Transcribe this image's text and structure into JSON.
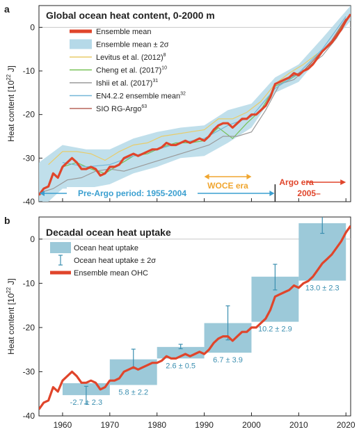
{
  "chart_data": [
    {
      "panel_label": "a",
      "type": "line",
      "title": "Global ocean heat content, 0-2000 m",
      "ylabel": "Heat content [10",
      "ylabel_exp": "22",
      "ylabel_unit": " J]",
      "xlim": [
        1955,
        2021
      ],
      "ylim": [
        -40,
        5
      ],
      "yticks": [
        -40,
        -30,
        -20,
        -10,
        0
      ],
      "grid": false,
      "legend_position": "top-left",
      "legend": [
        {
          "label": "Ensemble mean",
          "sup": ""
        },
        {
          "label": "Ensemble mean ± 2σ",
          "sup": ""
        },
        {
          "label": "Levitus et al. (2012)",
          "sup": "8"
        },
        {
          "label": "Cheng et al. (2017)",
          "sup": "10"
        },
        {
          "label": "Ishii et al. (2017)",
          "sup": "31"
        },
        {
          "label": "EN4.2.2 ensemble mean",
          "sup": "32"
        },
        {
          "label": "SIO RG-Argo",
          "sup": "63"
        }
      ],
      "series": [
        {
          "name": "Ensemble mean",
          "color": "#e0452b",
          "x": [
            1955,
            1956,
            1957,
            1958,
            1959,
            1960,
            1961,
            1962,
            1963,
            1964,
            1965,
            1966,
            1967,
            1968,
            1969,
            1970,
            1971,
            1972,
            1973,
            1974,
            1975,
            1976,
            1977,
            1978,
            1979,
            1980,
            1981,
            1982,
            1983,
            1984,
            1985,
            1986,
            1987,
            1988,
            1989,
            1990,
            1991,
            1992,
            1993,
            1994,
            1995,
            1996,
            1997,
            1998,
            1999,
            2000,
            2001,
            2002,
            2003,
            2004,
            2005,
            2006,
            2007,
            2008,
            2009,
            2010,
            2011,
            2012,
            2013,
            2014,
            2015,
            2016,
            2017,
            2018,
            2019,
            2020,
            2021
          ],
          "y": [
            -38.5,
            -37,
            -36.5,
            -33.5,
            -34.5,
            -32,
            -31,
            -30,
            -31,
            -32.5,
            -32.5,
            -32,
            -32.5,
            -34,
            -33.5,
            -32,
            -32,
            -31.5,
            -30,
            -29.5,
            -29,
            -29.5,
            -29,
            -28.5,
            -28,
            -28,
            -27.5,
            -26.5,
            -27,
            -27,
            -26.5,
            -26,
            -26.5,
            -26,
            -25.5,
            -26,
            -25,
            -23.5,
            -22.5,
            -22,
            -22,
            -23,
            -22,
            -21,
            -21,
            -20,
            -20,
            -19,
            -18,
            -16,
            -13,
            -12.5,
            -12,
            -11.5,
            -10.5,
            -11,
            -10,
            -9.5,
            -8.5,
            -7,
            -5.5,
            -4.5,
            -3.5,
            -2,
            -0.5,
            1.5,
            3
          ]
        },
        {
          "name": "Levitus et al. (2012)",
          "color": "#e8cc6a",
          "x": [
            1957,
            1960,
            1963,
            1966,
            1969,
            1972,
            1975,
            1978,
            1981,
            1984,
            1987,
            1990,
            1993,
            1996,
            1999,
            2002,
            2005,
            2008,
            2011,
            2014
          ],
          "y": [
            -31.5,
            -28.5,
            -28.5,
            -29,
            -30.5,
            -28.5,
            -27,
            -26.5,
            -25,
            -24.5,
            -24,
            -23.5,
            -21,
            -21,
            -19.5,
            -17,
            -13,
            -10.5,
            -8.5,
            -6
          ]
        },
        {
          "name": "Cheng et al. (2017)",
          "color": "#77c156",
          "x": [
            1960,
            1963,
            1966,
            1969,
            1972,
            1975,
            1978,
            1981,
            1984,
            1987,
            1990,
            1993,
            1996,
            1999,
            2002,
            2005,
            2008,
            2011,
            2014,
            2017,
            2020
          ],
          "y": [
            -32,
            -31,
            -32.5,
            -33.5,
            -31.5,
            -29.5,
            -29,
            -27.5,
            -26.5,
            -26.5,
            -26,
            -23,
            -25.5,
            -22,
            -19,
            -13.5,
            -12,
            -10,
            -6.5,
            -3.5,
            2
          ]
        },
        {
          "name": "Ishii et al. (2017)",
          "color": "#9a9a9a",
          "x": [
            1955,
            1958,
            1961,
            1964,
            1967,
            1970,
            1973,
            1976,
            1979,
            1982,
            1985,
            1988,
            1991,
            1994,
            1997,
            2000,
            2003,
            2006,
            2009,
            2012,
            2015,
            2018,
            2021
          ],
          "y": [
            -38,
            -37,
            -35,
            -34.5,
            -33,
            -32.5,
            -33,
            -32,
            -31,
            -30,
            -29,
            -28,
            -27,
            -25,
            -25,
            -24,
            -19,
            -13,
            -12,
            -9,
            -6.5,
            -2.5,
            3
          ]
        },
        {
          "name": "EN4.2.2 ensemble mean",
          "color": "#74b7d8",
          "x": [
            1960,
            1965,
            1970,
            1975,
            1980,
            1985,
            1990,
            1995,
            2000,
            2005,
            2010,
            2015,
            2020
          ],
          "y": [
            -31,
            -32,
            -31.5,
            -29.5,
            -28,
            -26.5,
            -25.5,
            -22.5,
            -20.5,
            -14,
            -10.5,
            -5,
            2.5
          ]
        },
        {
          "name": "SIO RG-Argo",
          "color": "#b7655c",
          "x": [
            2005,
            2008,
            2011,
            2014,
            2017,
            2020
          ],
          "y": [
            -13,
            -11.5,
            -10,
            -6.5,
            -3,
            2
          ]
        }
      ],
      "band": {
        "name": "Ensemble mean ± 2σ",
        "color": "#b5d9e8",
        "x": [
          1955,
          1960,
          1965,
          1970,
          1975,
          1980,
          1985,
          1990,
          1995,
          2000,
          2005,
          2010,
          2015,
          2021
        ],
        "upper": [
          -31,
          -27,
          -28,
          -28,
          -25.5,
          -24,
          -23,
          -22.5,
          -19,
          -17.5,
          -11.5,
          -8.5,
          -2.5,
          5
        ],
        "lower": [
          -42,
          -37,
          -37,
          -36,
          -33.5,
          -32,
          -30,
          -29.5,
          -26.5,
          -23,
          -15,
          -12.5,
          -6,
          1.5
        ]
      },
      "annotations": [
        {
          "text": "WOCE era",
          "color": "#f0a630",
          "x_range": [
            1990,
            2000
          ]
        },
        {
          "text": "Pre-Argo period: 1955-2004",
          "color": "#3a9fd0",
          "x_range": [
            1955,
            2005
          ]
        },
        {
          "text": "Argo era",
          "color": "#e0452b",
          "x_range": [
            2005,
            2020
          ]
        },
        {
          "text": "2005–",
          "color": "#e0452b"
        }
      ]
    },
    {
      "panel_label": "b",
      "type": "bar",
      "title": "Decadal ocean heat uptake",
      "ylabel": "Heat content [10",
      "ylabel_exp": "22",
      "ylabel_unit": " J]",
      "xlim": [
        1955,
        2021
      ],
      "ylim": [
        -40,
        5
      ],
      "yticks": [
        -40,
        -30,
        -20,
        -10,
        0
      ],
      "xticks": [
        1960,
        1970,
        1980,
        1990,
        2000,
        2010,
        2020
      ],
      "grid": false,
      "legend_position": "top-left",
      "legend": [
        {
          "label": "Ocean heat uptake"
        },
        {
          "label": "Ocean heat uptake ± 2σ"
        },
        {
          "label": "Ensemble mean OHC"
        }
      ],
      "bar_color": "#9cc9d9",
      "label_color": "#3b8fb0",
      "bars": [
        {
          "x0": 1960,
          "x1": 1970,
          "y0": -35.3,
          "y1": -32.6,
          "err_lo": -37.3,
          "err_hi": -33.3,
          "label": "-2.7 ± 2.3"
        },
        {
          "x0": 1970,
          "x1": 1980,
          "y0": -33.0,
          "y1": -27.2,
          "err_lo": -29.3,
          "err_hi": -24.9,
          "label": "5.8 ± 2.2"
        },
        {
          "x0": 1980,
          "x1": 1990,
          "y0": -27.0,
          "y1": -24.4,
          "err_lo": -24.8,
          "err_hi": -23.8,
          "label": "2.6 ± 0.5"
        },
        {
          "x0": 1990,
          "x1": 2000,
          "y0": -25.7,
          "y1": -19.0,
          "err_lo": -22.8,
          "err_hi": -15.1,
          "label": "6.7 ± 3.9"
        },
        {
          "x0": 2000,
          "x1": 2010,
          "y0": -18.7,
          "y1": -8.5,
          "err_lo": -11.5,
          "err_hi": -5.7,
          "label": "10.2 ± 2.9"
        },
        {
          "x0": 2010,
          "x1": 2020,
          "y0": -9.4,
          "y1": 3.6,
          "err_lo": 1.3,
          "err_hi": 5.9,
          "label": "13.0 ± 2.3"
        }
      ],
      "series_ref": "Ensemble mean OHC"
    }
  ]
}
